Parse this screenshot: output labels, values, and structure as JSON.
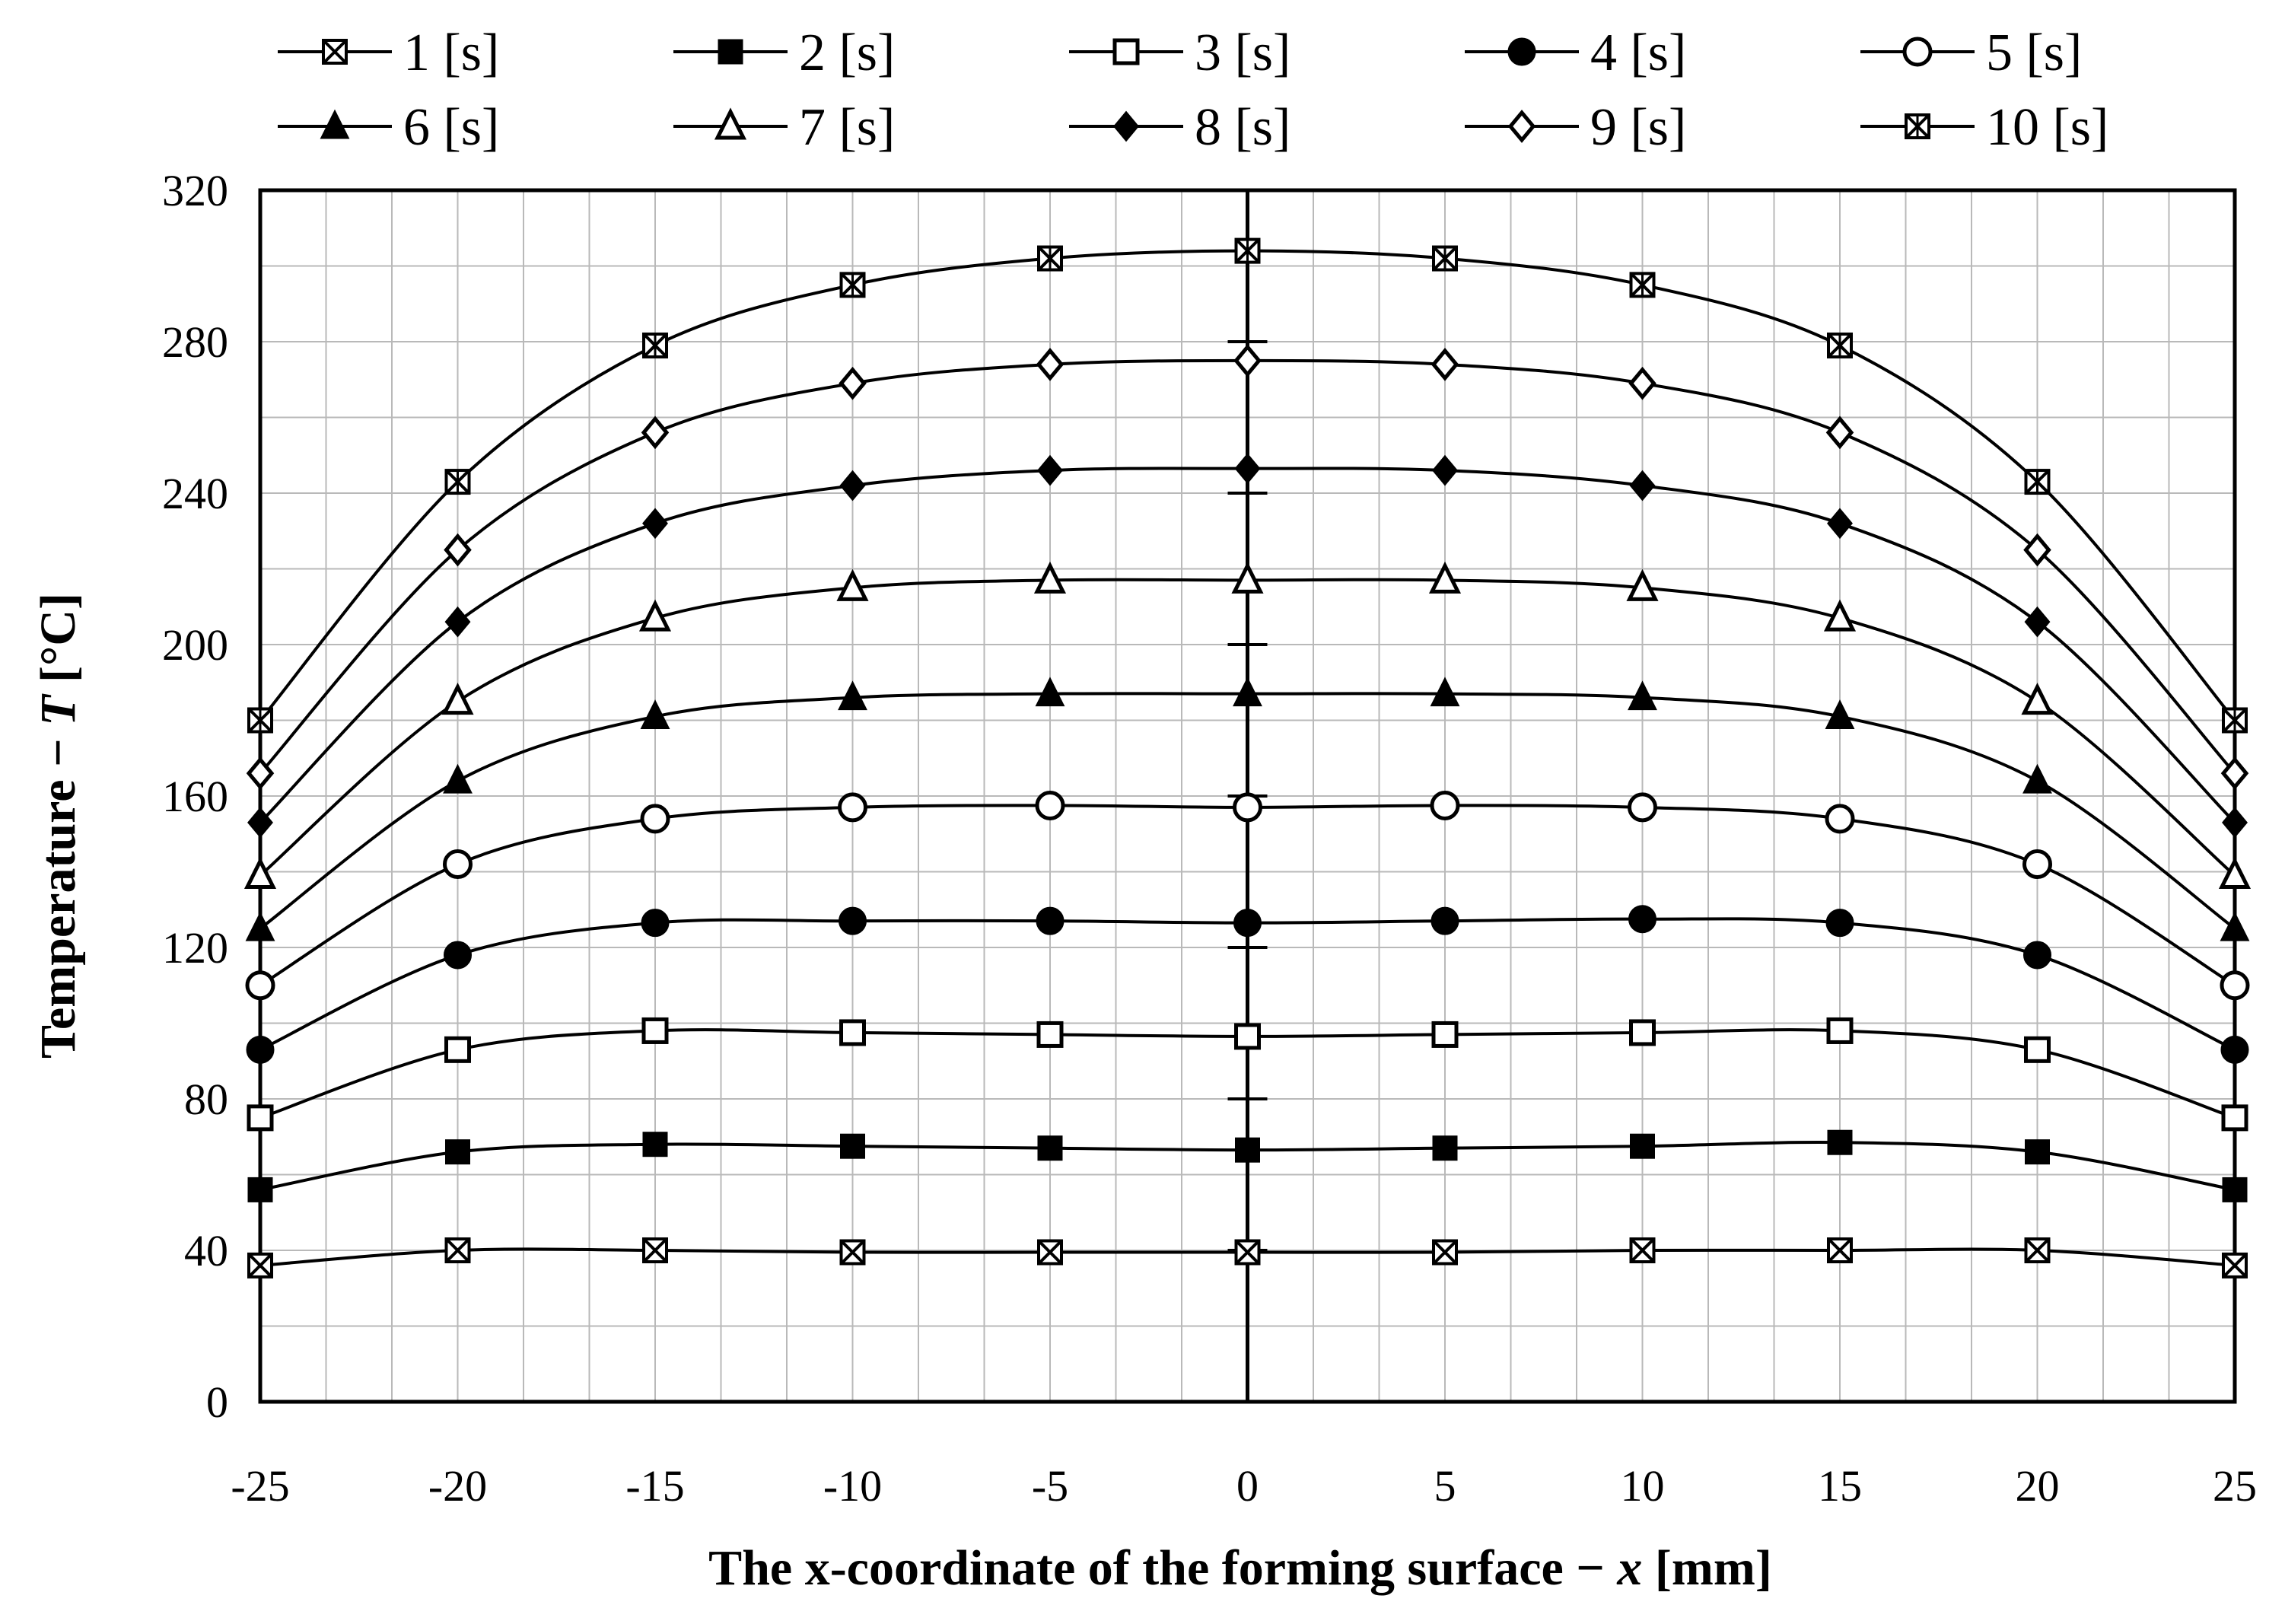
{
  "chart_data": {
    "type": "line",
    "title": "",
    "xlabel_main": "The x-coordinate of the forming surface − ",
    "xlabel_var": "x",
    "xlabel_unit": " [mm]",
    "ylabel_main": "Temperature − ",
    "ylabel_var": "T",
    "ylabel_unit": " [°C]",
    "xlim": [
      -25,
      25
    ],
    "ylim": [
      0,
      320
    ],
    "x_ticks": [
      "-25",
      "-20",
      "-15",
      "-10",
      "-5",
      "0",
      "5",
      "10",
      "15",
      "20",
      "25"
    ],
    "y_ticks": [
      "0",
      "40",
      "80",
      "120",
      "160",
      "200",
      "240",
      "280",
      "320"
    ],
    "grid": true,
    "legend_placement": "top",
    "x": [
      -25,
      -20,
      -15,
      -10,
      -5,
      0,
      5,
      10,
      15,
      20,
      25
    ],
    "series": [
      {
        "name": "1 [s]",
        "marker": "x-square",
        "values": [
          36,
          40,
          40,
          39.5,
          39.5,
          39.5,
          39.5,
          40,
          40,
          40,
          36
        ]
      },
      {
        "name": "2 [s]",
        "marker": "square-filled",
        "values": [
          56,
          66,
          68,
          67.5,
          67,
          66.5,
          67,
          67.5,
          68.5,
          66,
          56
        ]
      },
      {
        "name": "3 [s]",
        "marker": "square-open",
        "values": [
          75,
          93,
          98,
          97.5,
          97,
          96.5,
          97,
          97.5,
          98,
          93,
          75
        ]
      },
      {
        "name": "4 [s]",
        "marker": "circle-filled",
        "values": [
          93,
          118,
          126.5,
          127,
          127,
          126.5,
          127,
          127.5,
          126.5,
          118,
          93
        ]
      },
      {
        "name": "5 [s]",
        "marker": "circle-open",
        "values": [
          110,
          142,
          154,
          157,
          157.5,
          157,
          157.5,
          157,
          154,
          142,
          110
        ]
      },
      {
        "name": "6 [s]",
        "marker": "triangle-filled",
        "values": [
          125,
          164,
          181,
          186,
          187,
          187,
          187,
          186,
          181,
          164,
          125
        ]
      },
      {
        "name": "7 [s]",
        "marker": "triangle-open",
        "values": [
          139,
          185,
          207,
          215,
          217,
          217,
          217,
          215,
          207,
          185,
          139
        ]
      },
      {
        "name": "8 [s]",
        "marker": "diamond-filled",
        "values": [
          153,
          206,
          232,
          242,
          246,
          246.5,
          246,
          242,
          232,
          206,
          153
        ]
      },
      {
        "name": "9 [s]",
        "marker": "diamond-open",
        "values": [
          166,
          225,
          256,
          269,
          274,
          275,
          274,
          269,
          256,
          225,
          166
        ]
      },
      {
        "name": "10 [s]",
        "marker": "x-square-light",
        "values": [
          180,
          243,
          279,
          295,
          302,
          304,
          302,
          295,
          279,
          243,
          180
        ]
      }
    ]
  }
}
